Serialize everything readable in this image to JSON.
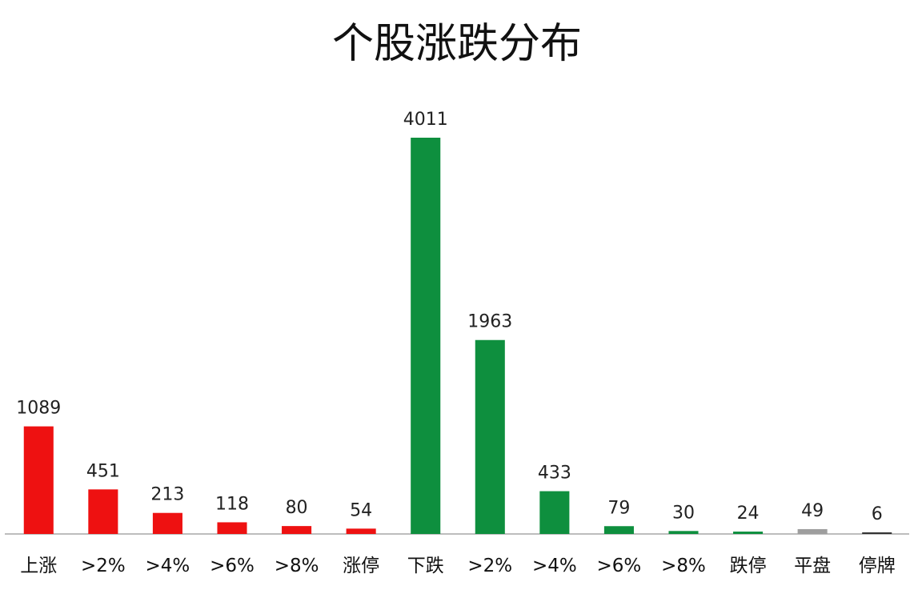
{
  "chart_data": {
    "type": "bar",
    "title": "个股涨跌分布",
    "xlabel": "",
    "ylabel": "",
    "ylim": [
      0,
      4200
    ],
    "grid": false,
    "legend": "none",
    "categories": [
      "上涨",
      ">2%",
      ">4%",
      ">6%",
      ">8%",
      "涨停",
      "下跌",
      ">2%",
      ">4%",
      ">6%",
      ">8%",
      "跌停",
      "平盘",
      "停牌"
    ],
    "values": [
      1089,
      451,
      213,
      118,
      80,
      54,
      4011,
      1963,
      433,
      79,
      30,
      24,
      49,
      6
    ],
    "colors": [
      "#ee1111",
      "#ee1111",
      "#ee1111",
      "#ee1111",
      "#ee1111",
      "#ee1111",
      "#0e8f3e",
      "#0e8f3e",
      "#0e8f3e",
      "#0e8f3e",
      "#0e8f3e",
      "#0e8f3e",
      "#9e9e9e",
      "#333333"
    ]
  }
}
